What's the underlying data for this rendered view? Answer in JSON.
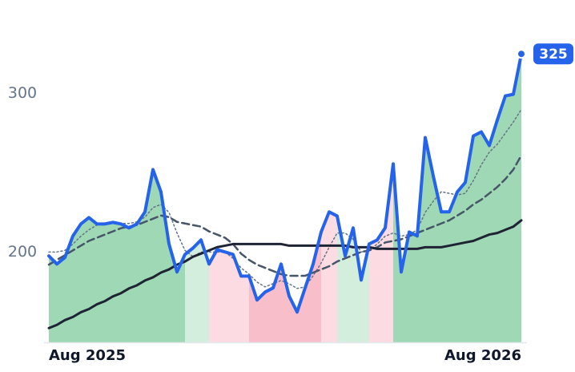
{
  "chart_data": {
    "type": "line",
    "xlim": [
      0,
      59
    ],
    "xticks": [
      {
        "value": 0,
        "label": "Aug 2025"
      },
      {
        "value": 59,
        "label": "Aug 2026"
      }
    ],
    "ylim": [
      143,
      359
    ],
    "yticks": [
      200,
      300
    ],
    "grid": false,
    "series": [
      {
        "color": "#2563eb",
        "style": "solid",
        "width": 4,
        "values": [
          197.5,
          192.4,
          196.5,
          210.1,
          217.7,
          221.7,
          217.7,
          217.7,
          218.7,
          217.7,
          215.2,
          217.7,
          225.3,
          252,
          237.9,
          205.1,
          187.4,
          198.5,
          202.5,
          207.6,
          192.4,
          201.5,
          200,
          198.5,
          184.8,
          184.8,
          169.7,
          174.7,
          177.3,
          192.4,
          172.2,
          162.1,
          177.3,
          192.4,
          212.6,
          225.3,
          222.7,
          197.5,
          215.2,
          182.3,
          205.1,
          207.6,
          215.2,
          255.6,
          187.4,
          212.6,
          210.1,
          272.2,
          248,
          225.3,
          225.3,
          237.9,
          243.9,
          273.2,
          275.8,
          267.2,
          283.3,
          298.5,
          299.5,
          325
        ]
      },
      {
        "color": "#1e2433",
        "style": "solid",
        "width": 3,
        "values": [
          152,
          154,
          157,
          159,
          162,
          164,
          167,
          169,
          172,
          174,
          177,
          179,
          182,
          184,
          187,
          189,
          192,
          194,
          197,
          199,
          201,
          203,
          204,
          205,
          205,
          205,
          205,
          205,
          205,
          205,
          204,
          204,
          204,
          204,
          204,
          204,
          204,
          204,
          203,
          203,
          203,
          202,
          202,
          202,
          202,
          202,
          202,
          203,
          203,
          203,
          204,
          205,
          206,
          207,
          209,
          211,
          212,
          214,
          216,
          220
        ]
      },
      {
        "color": "#475569",
        "style": "dashed",
        "width": 2.5,
        "values": [
          192,
          195,
          198,
          201,
          204,
          207,
          209,
          211,
          213,
          215,
          216,
          217,
          219,
          221,
          223,
          222,
          219,
          218,
          217,
          216,
          213,
          211,
          209,
          205,
          199,
          195,
          192,
          190,
          188,
          186,
          185,
          185,
          185,
          187,
          189,
          191,
          194,
          196,
          198,
          200,
          201,
          203,
          206,
          207,
          208,
          210,
          212,
          214,
          216,
          218,
          220,
          223,
          226,
          230,
          233,
          237,
          241,
          246,
          252,
          261
        ]
      },
      {
        "color": "#64748b",
        "style": "dotted",
        "width": 1.5,
        "values": [
          200,
          200,
          201,
          205,
          210,
          214,
          217,
          218,
          218,
          218,
          218,
          219,
          222,
          228,
          230,
          225,
          212,
          201,
          197,
          200,
          200,
          200,
          200,
          196,
          190,
          186,
          181,
          178,
          180,
          182,
          180,
          177,
          178,
          185,
          193,
          203,
          212,
          212,
          208,
          200,
          201,
          205,
          210,
          212,
          210,
          211,
          214,
          225,
          232,
          238,
          237,
          236,
          237,
          245,
          255,
          263,
          268,
          275,
          282,
          290
        ]
      }
    ],
    "regimes": [
      {
        "from": 0,
        "to": 17,
        "color": "#9fd8b4"
      },
      {
        "from": 17,
        "to": 20,
        "color": "#d4eedd"
      },
      {
        "from": 20,
        "to": 25,
        "color": "#fcdbe2"
      },
      {
        "from": 25,
        "to": 34,
        "color": "#f8bfcb"
      },
      {
        "from": 34,
        "to": 36,
        "color": "#fcdbe2"
      },
      {
        "from": 36,
        "to": 40,
        "color": "#d4eedd"
      },
      {
        "from": 40,
        "to": 43,
        "color": "#fcdbe2"
      },
      {
        "from": 43,
        "to": 59,
        "color": "#9fd8b4"
      }
    ],
    "badge_color": "#2563eb"
  }
}
